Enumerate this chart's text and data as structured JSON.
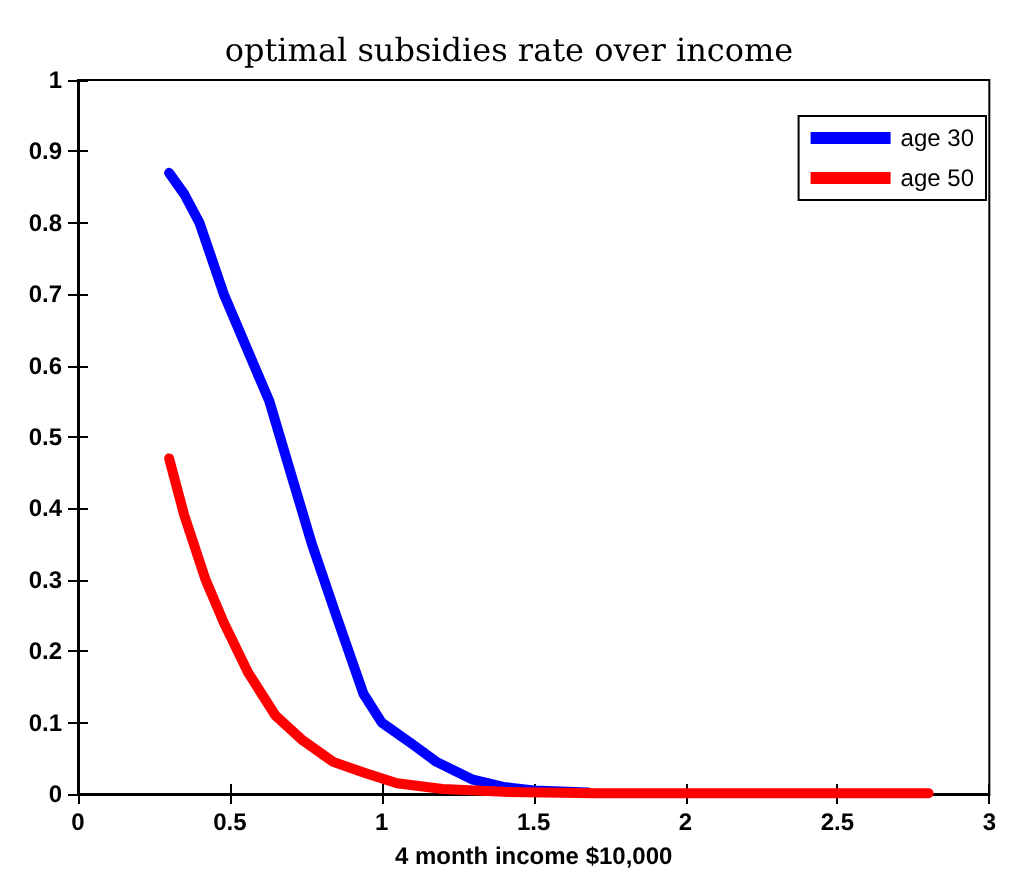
{
  "chart_data": {
    "type": "line",
    "title": "optimal subsidies rate over income",
    "xlabel": "4 month income $10,000",
    "xlim": [
      0,
      3
    ],
    "xticks": [
      0,
      0.5,
      1,
      1.5,
      2,
      2.5,
      3
    ],
    "ylim": [
      0,
      1
    ],
    "yticks": [
      0,
      0.1,
      0.2,
      0.3,
      0.4,
      0.5,
      0.6,
      0.7,
      0.8,
      0.9,
      1
    ],
    "grid": false,
    "legend": "top right",
    "marker": "none",
    "line_style": "solid",
    "series": [
      {
        "name": "age 30",
        "color": "#0000ff",
        "x": [
          0.3,
          0.35,
          0.4,
          0.48,
          0.55,
          0.63,
          0.7,
          0.77,
          0.85,
          0.94,
          1.0,
          1.1,
          1.18,
          1.3,
          1.4,
          1.5,
          1.68
        ],
        "values": [
          0.87,
          0.84,
          0.8,
          0.7,
          0.63,
          0.55,
          0.45,
          0.35,
          0.25,
          0.14,
          0.1,
          0.07,
          0.045,
          0.02,
          0.01,
          0.005,
          0.002
        ]
      },
      {
        "name": "age 50",
        "color": "#ff0000",
        "x": [
          0.3,
          0.35,
          0.42,
          0.48,
          0.56,
          0.65,
          0.74,
          0.84,
          0.94,
          1.05,
          1.2,
          1.4,
          1.7,
          2.0,
          2.4,
          2.8
        ],
        "values": [
          0.47,
          0.39,
          0.3,
          0.24,
          0.17,
          0.11,
          0.075,
          0.045,
          0.03,
          0.015,
          0.007,
          0.003,
          0.001,
          0.001,
          0.001,
          0.001
        ]
      }
    ]
  }
}
